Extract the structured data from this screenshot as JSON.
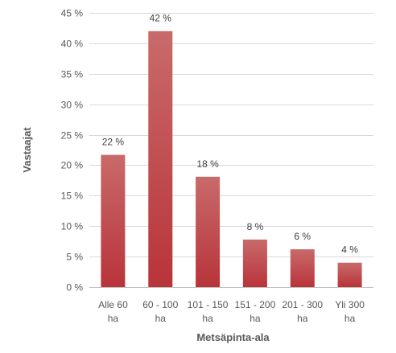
{
  "chart_data": {
    "type": "bar",
    "xlabel": "Metsäpinta-ala",
    "ylabel": "Vastaajat",
    "ylim": [
      0,
      45
    ],
    "yticks": [
      0,
      5,
      10,
      15,
      20,
      25,
      30,
      35,
      40,
      45
    ],
    "ytick_labels": [
      "0 %",
      "5 %",
      "10 %",
      "15 %",
      "20 %",
      "25 %",
      "30 %",
      "35 %",
      "40 %",
      "45 %"
    ],
    "categories": [
      [
        "Alle 60",
        "ha"
      ],
      [
        "60 - 100",
        "ha"
      ],
      [
        "101 - 150",
        "ha"
      ],
      [
        "151 - 200",
        "ha"
      ],
      [
        "201 - 300",
        "ha"
      ],
      [
        "Yli 300",
        "ha"
      ]
    ],
    "values": [
      21.7,
      42,
      18.1,
      7.8,
      6.2,
      4
    ],
    "data_labels": [
      "22 %",
      "42 %",
      "18 %",
      "8 %",
      "6 %",
      "4 %"
    ],
    "grid": true,
    "legend": "none",
    "colors": {
      "bar_top": "#c96a6a",
      "bar_bottom": "#b8343a"
    }
  }
}
